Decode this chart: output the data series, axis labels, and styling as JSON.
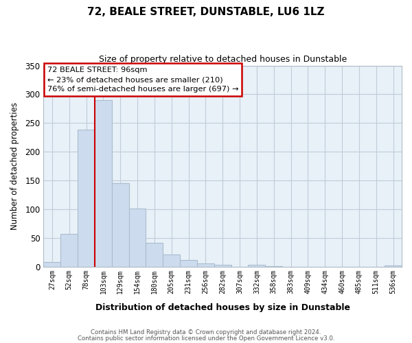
{
  "title": "72, BEALE STREET, DUNSTABLE, LU6 1LZ",
  "subtitle": "Size of property relative to detached houses in Dunstable",
  "xlabel": "Distribution of detached houses by size in Dunstable",
  "ylabel": "Number of detached properties",
  "bar_labels": [
    "27sqm",
    "52sqm",
    "78sqm",
    "103sqm",
    "129sqm",
    "154sqm",
    "180sqm",
    "205sqm",
    "231sqm",
    "256sqm",
    "282sqm",
    "307sqm",
    "332sqm",
    "358sqm",
    "383sqm",
    "409sqm",
    "434sqm",
    "460sqm",
    "485sqm",
    "511sqm",
    "536sqm"
  ],
  "bar_values": [
    8,
    57,
    238,
    290,
    145,
    101,
    42,
    21,
    12,
    6,
    3,
    0,
    3,
    1,
    0,
    0,
    0,
    0,
    0,
    0,
    2
  ],
  "bar_color": "#ccdcee",
  "bar_edgecolor": "#aabcce",
  "vline_position": 2.5,
  "vline_color": "#cc0000",
  "ylim": [
    0,
    350
  ],
  "yticks": [
    0,
    50,
    100,
    150,
    200,
    250,
    300,
    350
  ],
  "annotation_title": "72 BEALE STREET: 96sqm",
  "annotation_line1": "← 23% of detached houses are smaller (210)",
  "annotation_line2": "76% of semi-detached houses are larger (697) →",
  "footer_line1": "Contains HM Land Registry data © Crown copyright and database right 2024.",
  "footer_line2": "Contains public sector information licensed under the Open Government Licence v3.0.",
  "plot_bg_color": "#e8f0f8",
  "fig_bg_color": "#ffffff",
  "grid_color": "#c0ccd8"
}
